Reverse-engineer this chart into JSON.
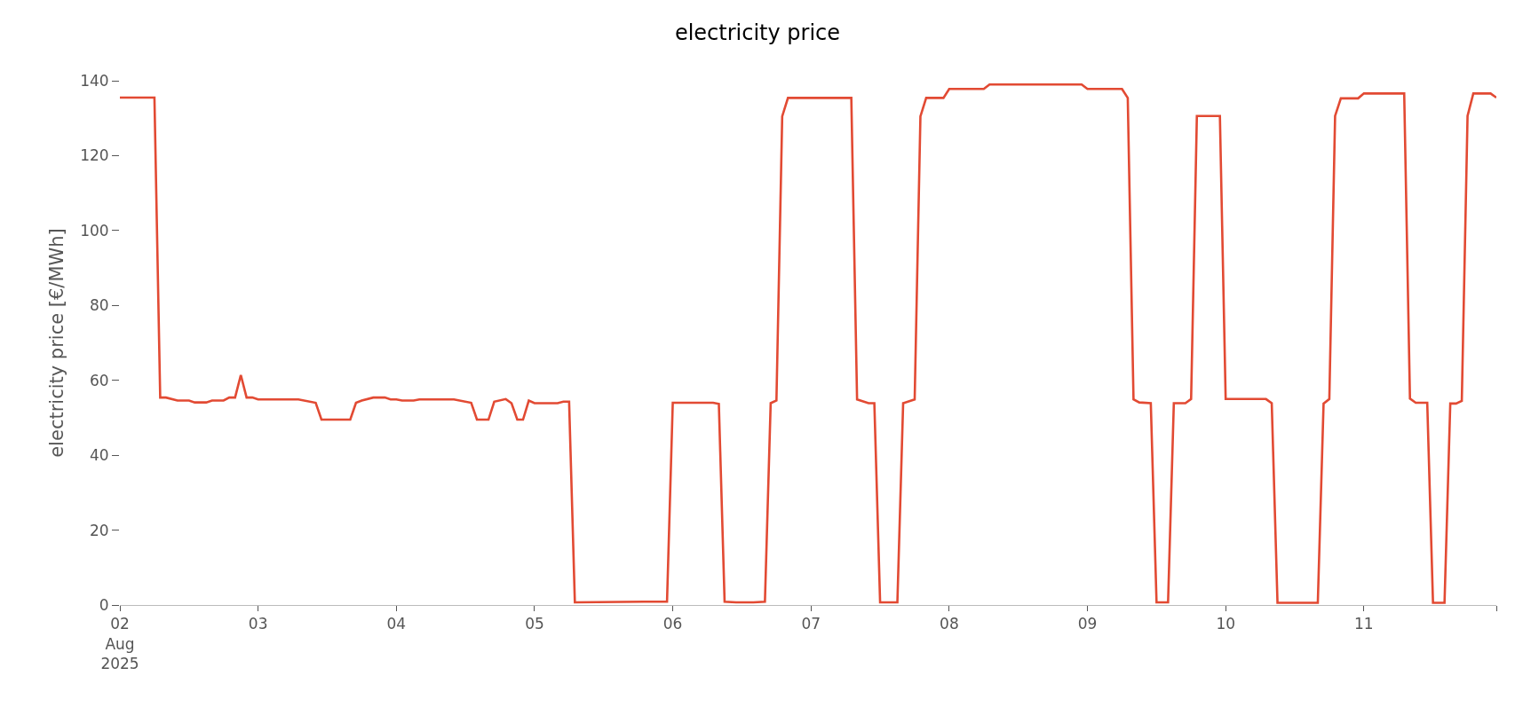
{
  "chart_data": {
    "type": "line",
    "title": "electricity price",
    "ylabel": "electricity price [€/MWh]",
    "x": [
      "2025-08-02T00:00",
      "2025-08-02T06:00",
      "2025-08-02T07:00",
      "2025-08-02T08:00",
      "2025-08-02T10:00",
      "2025-08-02T12:00",
      "2025-08-02T13:00",
      "2025-08-02T15:00",
      "2025-08-02T16:00",
      "2025-08-02T18:00",
      "2025-08-02T19:00",
      "2025-08-02T20:00",
      "2025-08-02T21:00",
      "2025-08-02T22:00",
      "2025-08-02T23:00",
      "2025-08-03T00:00",
      "2025-08-03T07:00",
      "2025-08-03T10:00",
      "2025-08-03T11:00",
      "2025-08-03T16:00",
      "2025-08-03T17:00",
      "2025-08-03T18:00",
      "2025-08-03T20:00",
      "2025-08-03T22:00",
      "2025-08-03T23:00",
      "2025-08-04T00:00",
      "2025-08-04T01:00",
      "2025-08-04T03:00",
      "2025-08-04T04:00",
      "2025-08-04T10:00",
      "2025-08-04T13:00",
      "2025-08-04T14:00",
      "2025-08-04T16:00",
      "2025-08-04T17:00",
      "2025-08-04T19:00",
      "2025-08-04T20:00",
      "2025-08-04T21:00",
      "2025-08-04T22:00",
      "2025-08-04T23:00",
      "2025-08-05T00:00",
      "2025-08-05T04:00",
      "2025-08-05T05:00",
      "2025-08-05T06:00",
      "2025-08-05T07:00",
      "2025-08-05T19:00",
      "2025-08-05T23:00",
      "2025-08-06T00:00",
      "2025-08-06T07:00",
      "2025-08-06T08:00",
      "2025-08-06T09:00",
      "2025-08-06T11:00",
      "2025-08-06T14:00",
      "2025-08-06T16:00",
      "2025-08-06T17:00",
      "2025-08-06T18:00",
      "2025-08-06T19:00",
      "2025-08-06T20:00",
      "2025-08-07T07:00",
      "2025-08-07T08:00",
      "2025-08-07T10:00",
      "2025-08-07T11:00",
      "2025-08-07T12:00",
      "2025-08-07T15:00",
      "2025-08-07T16:00",
      "2025-08-07T18:00",
      "2025-08-07T19:00",
      "2025-08-07T20:00",
      "2025-08-07T23:00",
      "2025-08-08T00:00",
      "2025-08-08T06:00",
      "2025-08-08T07:00",
      "2025-08-08T23:00",
      "2025-08-09T00:00",
      "2025-08-09T06:00",
      "2025-08-09T07:00",
      "2025-08-09T08:00",
      "2025-08-09T09:00",
      "2025-08-09T11:00",
      "2025-08-09T12:00",
      "2025-08-09T14:00",
      "2025-08-09T15:00",
      "2025-08-09T17:00",
      "2025-08-09T18:00",
      "2025-08-09T19:00",
      "2025-08-09T23:00",
      "2025-08-10T00:00",
      "2025-08-10T07:00",
      "2025-08-10T08:00",
      "2025-08-10T09:00",
      "2025-08-10T16:00",
      "2025-08-10T17:00",
      "2025-08-10T18:00",
      "2025-08-10T19:00",
      "2025-08-10T20:00",
      "2025-08-10T23:00",
      "2025-08-11T00:00",
      "2025-08-11T07:00",
      "2025-08-11T08:00",
      "2025-08-11T09:00",
      "2025-08-11T11:00",
      "2025-08-11T12:00",
      "2025-08-11T14:00",
      "2025-08-11T15:00",
      "2025-08-11T16:00",
      "2025-08-11T17:00",
      "2025-08-11T18:00",
      "2025-08-11T19:00",
      "2025-08-11T22:00",
      "2025-08-11T23:00"
    ],
    "series": [
      {
        "color": "#e24a33",
        "values": [
          135.5,
          135.5,
          55.4,
          55.4,
          54.6,
          54.6,
          54.1,
          54.1,
          54.6,
          54.6,
          55.4,
          55.4,
          61.4,
          55.4,
          55.4,
          54.9,
          54.9,
          54.0,
          49.5,
          49.5,
          54.0,
          54.6,
          55.4,
          55.4,
          54.9,
          54.9,
          54.6,
          54.6,
          54.9,
          54.9,
          54.0,
          49.5,
          49.5,
          54.3,
          55.0,
          53.9,
          49.5,
          49.5,
          54.6,
          53.9,
          53.9,
          54.3,
          54.3,
          0.7,
          0.9,
          0.9,
          54.0,
          54.0,
          53.7,
          0.9,
          0.7,
          0.7,
          0.9,
          53.9,
          54.6,
          130.5,
          135.4,
          135.4,
          54.9,
          53.9,
          53.9,
          0.7,
          0.7,
          53.9,
          54.9,
          130.5,
          135.4,
          135.4,
          137.8,
          137.8,
          139.0,
          139.0,
          137.8,
          137.8,
          135.4,
          54.9,
          54.1,
          53.9,
          0.7,
          0.7,
          53.9,
          53.9,
          55.0,
          130.6,
          130.6,
          55.0,
          55.0,
          53.9,
          0.6,
          0.6,
          53.8,
          55.0,
          130.6,
          135.3,
          135.3,
          136.6,
          136.6,
          55.1,
          54.0,
          54.0,
          0.6,
          0.6,
          53.8,
          53.8,
          54.5,
          130.6,
          136.6,
          136.6,
          135.5
        ]
      }
    ],
    "xticks": [
      {
        "value": "2025-08-02",
        "label": "02\nAug\n2025"
      },
      {
        "value": "2025-08-03",
        "label": "03"
      },
      {
        "value": "2025-08-04",
        "label": "04"
      },
      {
        "value": "2025-08-05",
        "label": "05"
      },
      {
        "value": "2025-08-06",
        "label": "06"
      },
      {
        "value": "2025-08-07",
        "label": "07"
      },
      {
        "value": "2025-08-08",
        "label": "08"
      },
      {
        "value": "2025-08-09",
        "label": "09"
      },
      {
        "value": "2025-08-10",
        "label": "10"
      },
      {
        "value": "2025-08-11",
        "label": "11"
      },
      {
        "value": "2025-08-11T23:00",
        "label": null
      }
    ],
    "xlim": [
      "2025-08-02T00:00",
      "2025-08-11T23:00"
    ],
    "ylim": [
      0,
      140
    ],
    "yticks": [
      0,
      20,
      40,
      60,
      80,
      100,
      120,
      140
    ],
    "grid": false,
    "line_style": "solid"
  }
}
